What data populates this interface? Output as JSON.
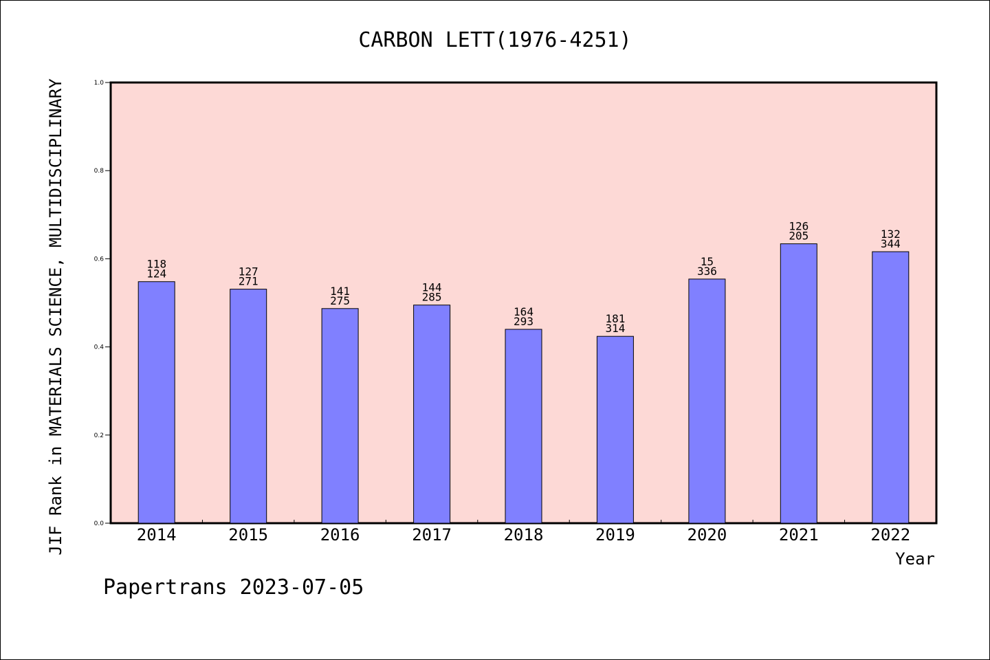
{
  "chart_data": {
    "type": "bar",
    "title": "CARBON LETT(1976-4251)",
    "xlabel": "Year",
    "ylabel": "JIF Rank in MATERIALS SCIENCE, MULTIDISCIPLINARY",
    "categories": [
      "2014",
      "2015",
      "2016",
      "2017",
      "2018",
      "2019",
      "2020",
      "2021",
      "2022"
    ],
    "values": [
      0.548,
      0.531,
      0.487,
      0.495,
      0.44,
      0.424,
      0.554,
      0.634,
      0.616
    ],
    "labels_top": [
      "118",
      "127",
      "141",
      "144",
      "164",
      "181",
      "15",
      "126",
      "132"
    ],
    "labels_bottom": [
      "124",
      "271",
      "275",
      "285",
      "293",
      "314",
      "336",
      "205",
      "344"
    ],
    "ylim": [
      0,
      1.0
    ],
    "yticks": [
      "0.0",
      "0.2",
      "0.4",
      "0.6",
      "0.8",
      "1.0"
    ],
    "grid": false,
    "colors": {
      "plot_bg": "#fdd9d6",
      "bar": "#8080ff",
      "bar_edge": "#000000"
    }
  },
  "footer": "Papertrans 2023-07-05"
}
